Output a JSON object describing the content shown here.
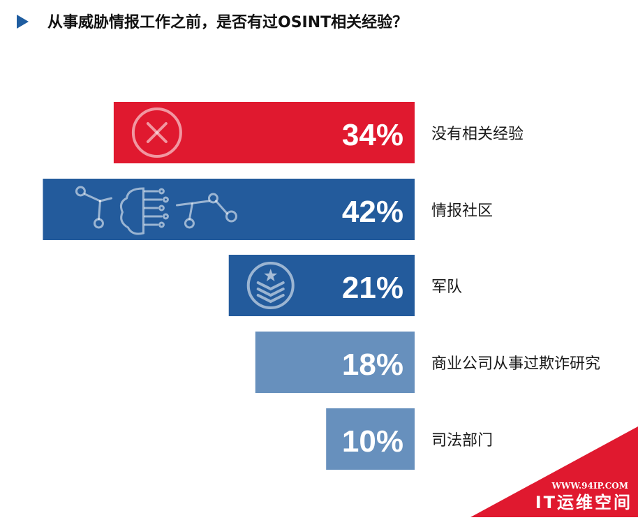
{
  "title": "从事威胁情报工作之前，是否有过OSINT相关经验？",
  "chart_data": {
    "type": "bar",
    "title": "从事威胁情报工作之前，是否有过OSINT相关经验？",
    "categories": [
      "没有相关经验",
      "情报社区",
      "军队",
      "商业公司从事过欺诈研究",
      "司法部门"
    ],
    "values": [
      34,
      42,
      21,
      18,
      10
    ],
    "value_labels": [
      "34%",
      "42%",
      "21%",
      "18%",
      "10%"
    ],
    "colors": [
      "#e0192f",
      "#235b9c",
      "#235b9c",
      "#6790bd",
      "#6790bd"
    ],
    "icons": [
      "cross-circle-icon",
      "network-brain-icon",
      "military-badge-icon",
      "",
      ""
    ],
    "unit": "%",
    "orientation": "horizontal",
    "alignment": "right",
    "grid": false,
    "legend": "none"
  },
  "watermark": {
    "url": "WWW.94IP.COM",
    "name": "IT运维空间",
    "color": "#e0192f"
  }
}
